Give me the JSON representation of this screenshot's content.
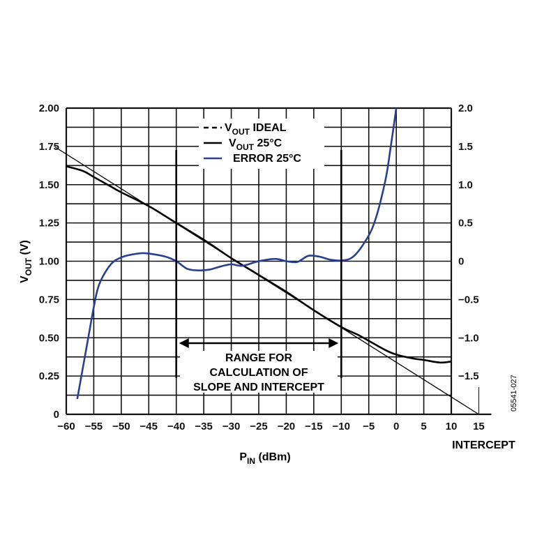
{
  "chart_data": {
    "type": "line",
    "xlabel": "P",
    "xlabel_sub": "IN",
    "xlabel_unit": " (dBm)",
    "ylabel": "V",
    "ylabel_sub": "OUT",
    "ylabel_unit": " (V)",
    "xlim": [
      -60,
      10
    ],
    "xticks": [
      -60,
      -55,
      -50,
      -45,
      -40,
      -35,
      -30,
      -25,
      -20,
      -15,
      -10,
      -5,
      0,
      5,
      10,
      15
    ],
    "xtick_labels": [
      "−60",
      "−55",
      "−50",
      "−45",
      "−40",
      "−35",
      "−30",
      "−25",
      "−20",
      "−15",
      "−10",
      "−5",
      "0",
      "5",
      "10",
      "15"
    ],
    "ylim": [
      0,
      2.0
    ],
    "yticks": [
      0,
      0.25,
      0.5,
      0.75,
      1.0,
      1.25,
      1.5,
      1.75,
      2.0
    ],
    "ytick_labels": [
      "0",
      "0.25",
      "0.50",
      "0.75",
      "1.00",
      "1.25",
      "1.50",
      "1.75",
      "2.00"
    ],
    "y2lim": [
      -2.0,
      2.0
    ],
    "y2ticks": [
      -1.5,
      -1.0,
      -0.5,
      0,
      0.5,
      1.0,
      1.5,
      2.0
    ],
    "y2tick_labels": [
      "−1.5",
      "−1.0",
      "−0.5",
      "0",
      "0.5",
      "1.0",
      "1.5",
      "2.0"
    ],
    "grid": true,
    "legend_placement": "top-center",
    "series": [
      {
        "name": "V_OUT IDEAL",
        "legend_main": "V",
        "legend_sub": "OUT",
        "legend_rest": " IDEAL",
        "style": "thin",
        "color": "#000000",
        "axis": "left",
        "x": [
          -62,
          15
        ],
        "y": [
          1.745,
          0
        ]
      },
      {
        "name": "V_OUT 25°C",
        "legend_main": "V",
        "legend_sub": "OUT",
        "legend_rest": " 25°C",
        "style": "solid",
        "color": "#000000",
        "axis": "left",
        "x": [
          -60,
          -57,
          -55,
          -52,
          -50,
          -45,
          -40,
          -35,
          -30,
          -25,
          -20,
          -15,
          -10,
          -7,
          -5,
          -2,
          0,
          3,
          5,
          8,
          10
        ],
        "y": [
          1.62,
          1.59,
          1.55,
          1.49,
          1.45,
          1.36,
          1.25,
          1.14,
          1.02,
          0.91,
          0.8,
          0.68,
          0.57,
          0.52,
          0.48,
          0.42,
          0.39,
          0.365,
          0.355,
          0.338,
          0.345
        ]
      },
      {
        "name": "ERROR 25°C",
        "legend_main": "ERROR 25°C",
        "legend_sub": "",
        "legend_rest": "",
        "style": "solid",
        "color": "#2a3f8f",
        "axis": "right",
        "x": [
          -58,
          -56,
          -55,
          -54,
          -52,
          -50,
          -47,
          -45,
          -42,
          -40,
          -38,
          -36,
          -34,
          -32,
          -30,
          -28,
          -25,
          -22,
          -20,
          -18,
          -16,
          -14,
          -12,
          -10,
          -8,
          -6,
          -4,
          -2,
          -1,
          0
        ],
        "y": [
          -1.8,
          -1.0,
          -0.6,
          -0.3,
          -0.05,
          0.05,
          0.1,
          0.1,
          0.06,
          0.0,
          -0.1,
          -0.12,
          -0.11,
          -0.07,
          -0.04,
          -0.06,
          0.0,
          0.03,
          0.0,
          -0.01,
          0.07,
          0.06,
          0.02,
          0.01,
          0.05,
          0.22,
          0.5,
          1.05,
          1.5,
          2.0
        ]
      }
    ],
    "annotations": {
      "range_lines_x": [
        -40,
        -10
      ],
      "range_text": [
        "RANGE FOR",
        "CALCULATION OF",
        "SLOPE AND INTERCEPT"
      ],
      "intercept_label": "INTERCEPT",
      "intercept_x": 15,
      "figure_id": "05541-027"
    }
  }
}
